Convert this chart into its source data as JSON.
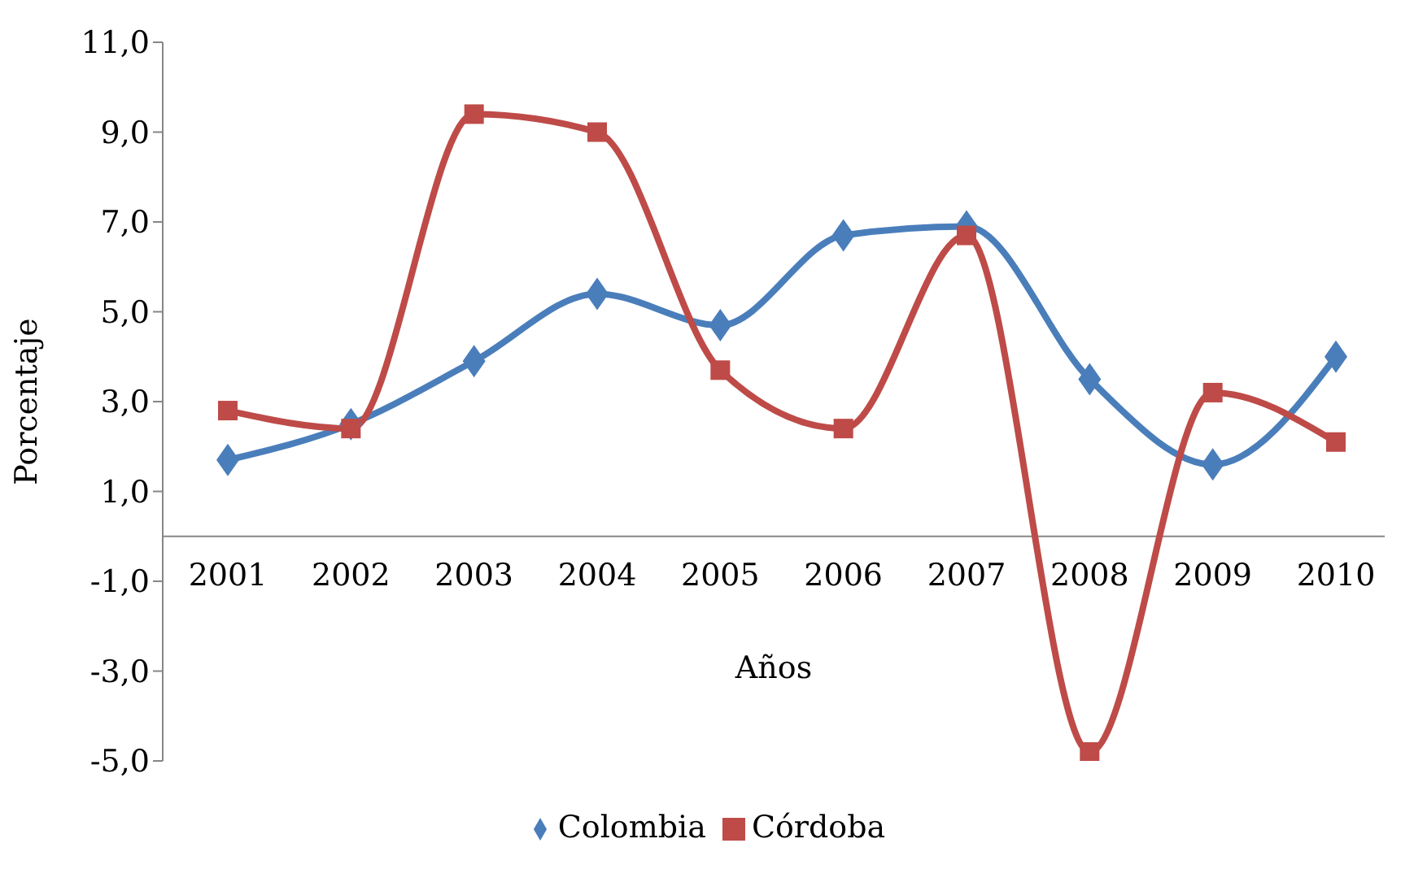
{
  "chart_data": {
    "type": "line",
    "xlabel": "Años",
    "ylabel": "Porcentaje",
    "categories": [
      "2001",
      "2002",
      "2003",
      "2004",
      "2005",
      "2006",
      "2007",
      "2008",
      "2009",
      "2010"
    ],
    "series": [
      {
        "name": "Colombia",
        "color": "#4a7ebb",
        "marker": "diamond",
        "values": [
          1.7,
          2.5,
          3.9,
          5.4,
          4.7,
          6.7,
          6.9,
          3.5,
          1.6,
          4.0
        ]
      },
      {
        "name": "Córdoba",
        "color": "#be4b48",
        "marker": "square",
        "values": [
          2.8,
          2.4,
          9.4,
          9.0,
          3.7,
          2.4,
          6.7,
          -4.8,
          3.2,
          2.1
        ]
      }
    ],
    "ylim": [
      -5,
      11
    ],
    "yticks": [
      {
        "value": -5,
        "label": "-5,0"
      },
      {
        "value": -3,
        "label": "-3,0"
      },
      {
        "value": -1,
        "label": "-1,0"
      },
      {
        "value": 1,
        "label": "1,0"
      },
      {
        "value": 3,
        "label": "3,0"
      },
      {
        "value": 5,
        "label": "5,0"
      },
      {
        "value": 7,
        "label": "7,0"
      },
      {
        "value": 9,
        "label": "9,0"
      },
      {
        "value": 11,
        "label": "11,0"
      }
    ],
    "legend": "bottom",
    "line_style": "solid"
  }
}
